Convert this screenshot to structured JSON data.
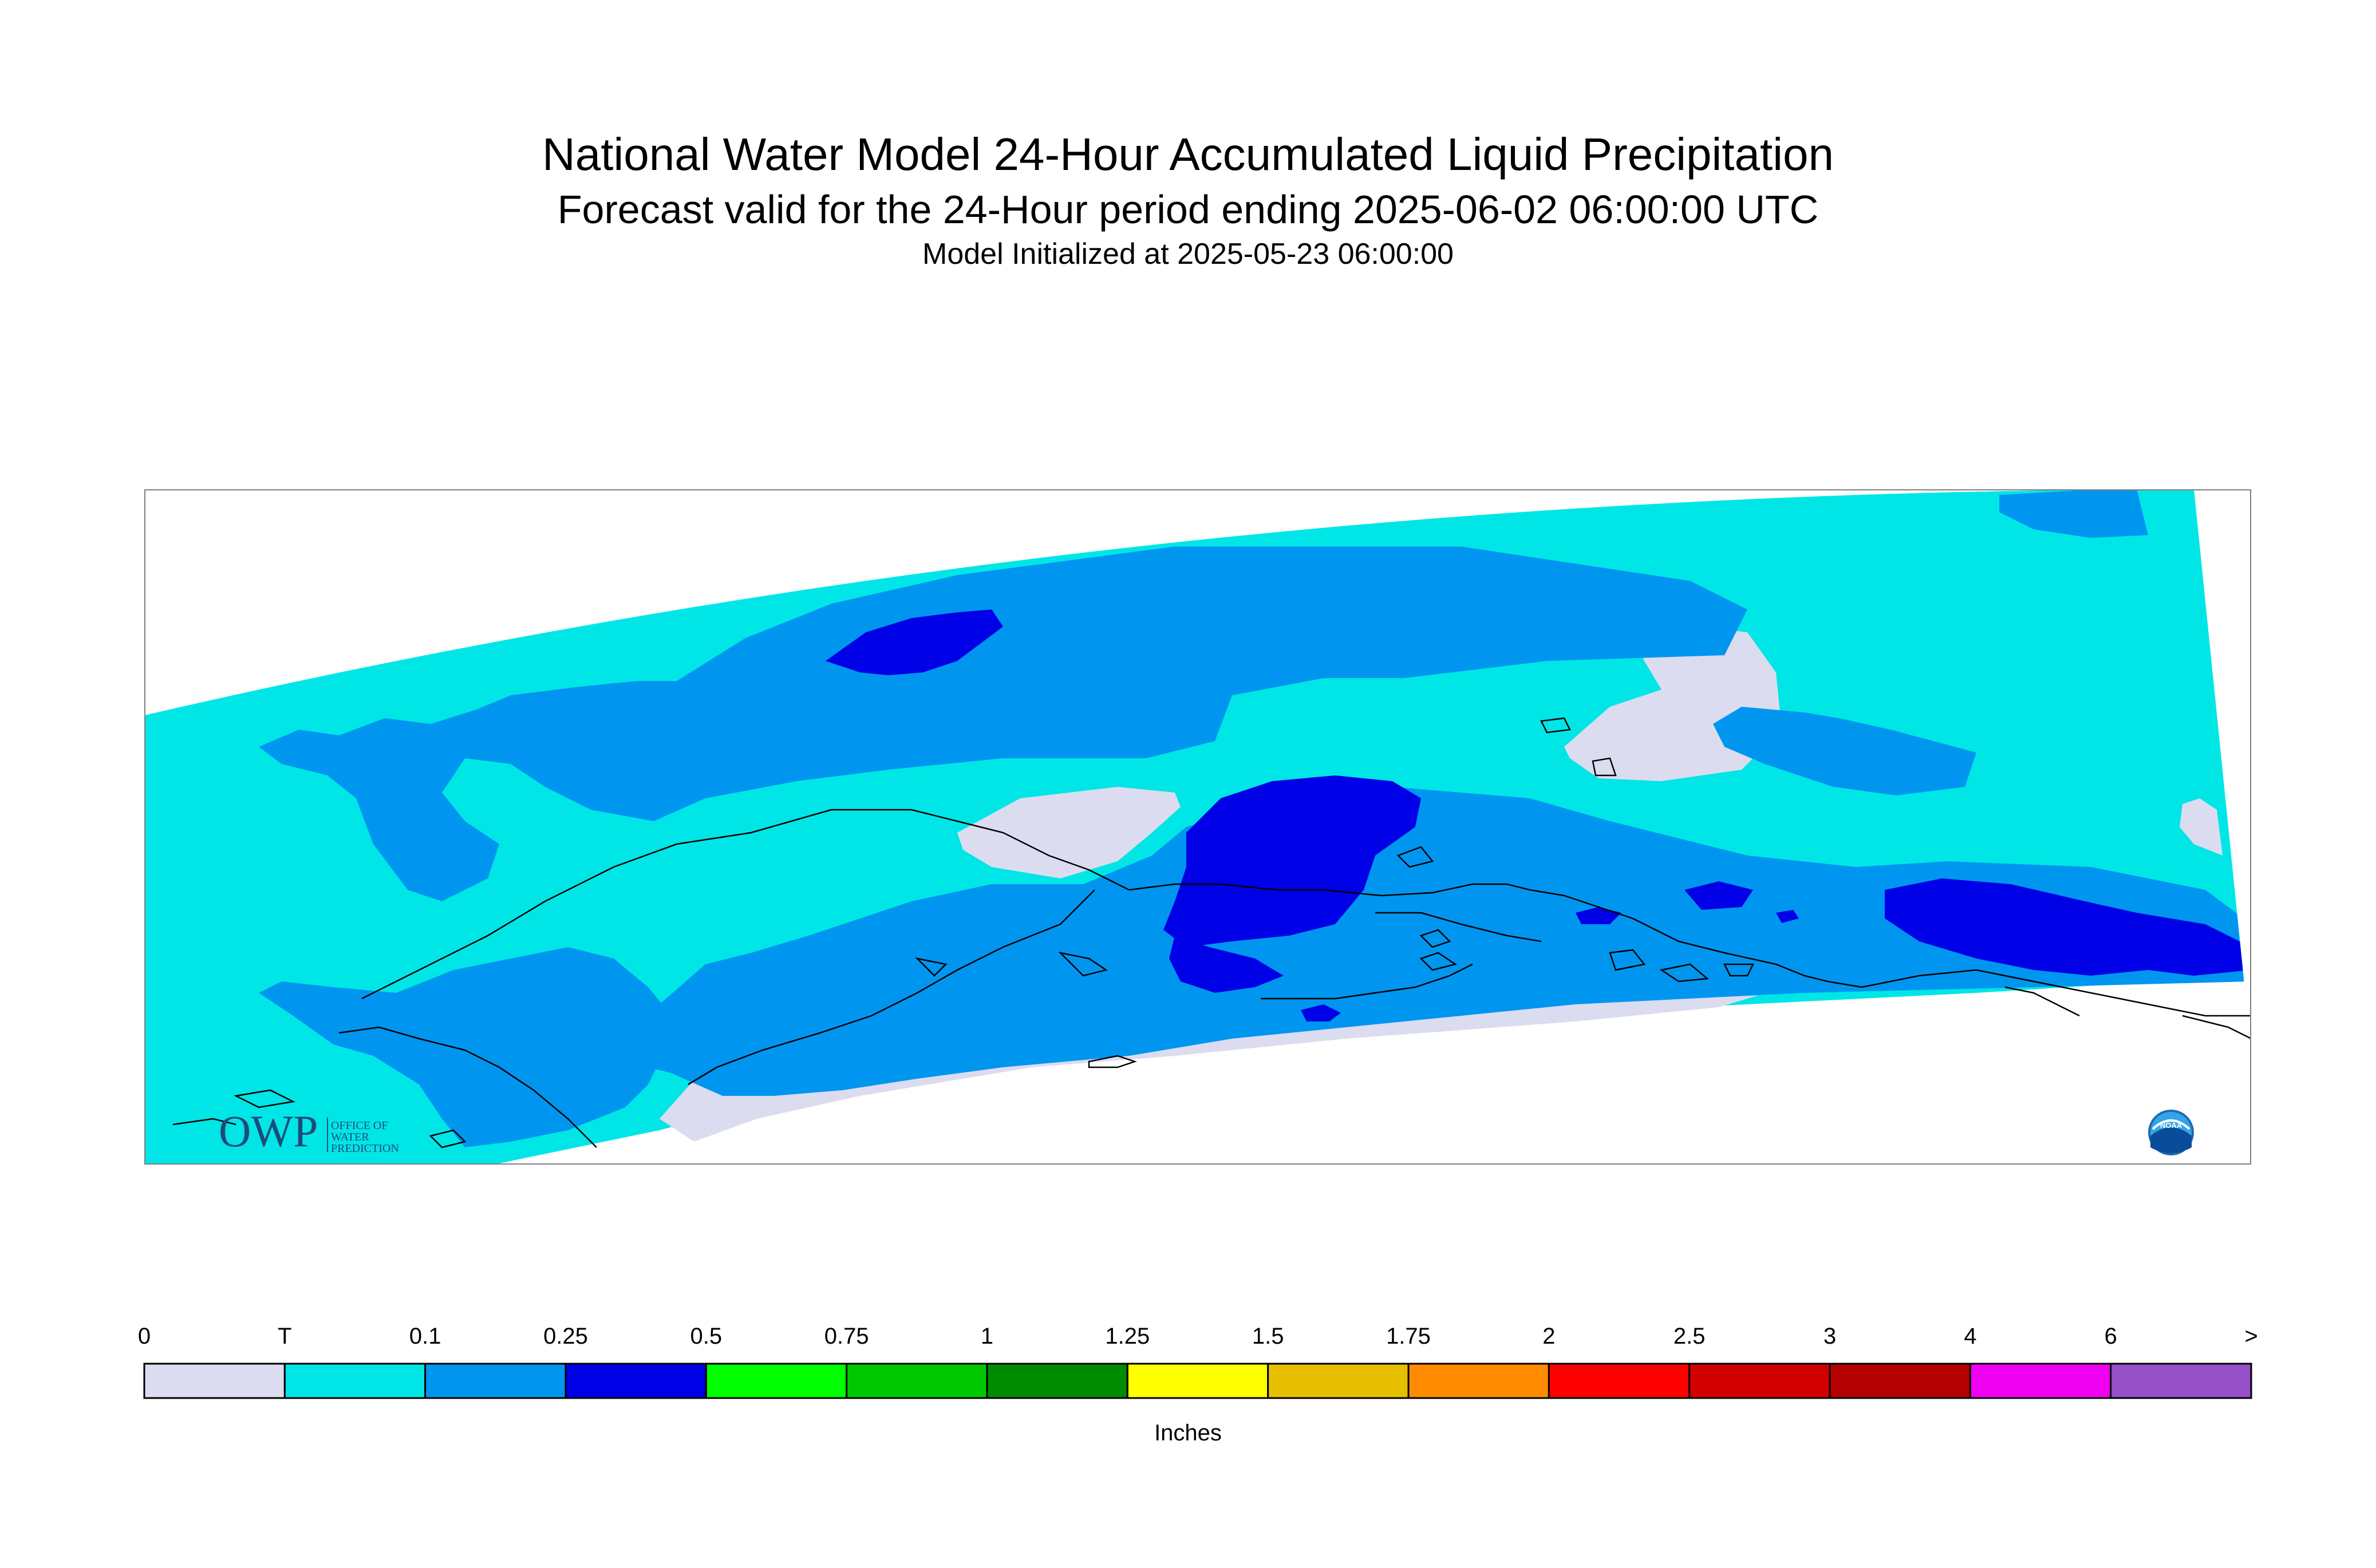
{
  "header": {
    "title": "National Water Model 24-Hour Accumulated Liquid Precipitation",
    "subtitle": "Forecast valid for the 24-Hour period ending 2025-06-02 06:00:00 UTC",
    "init": "Model Initialized at 2025-05-23 06:00:00"
  },
  "logos": {
    "owp_mark": "OWP",
    "owp_text": [
      "OFFICE OF",
      "WATER",
      "PREDICTION"
    ],
    "noaa_text": "NOAA"
  },
  "legend": {
    "unit": "Inches",
    "labels": [
      "0",
      "T",
      "0.1",
      "0.25",
      "0.5",
      "0.75",
      "1",
      "1.25",
      "1.5",
      "1.75",
      "2",
      "2.5",
      "3",
      "4",
      "6",
      ">"
    ],
    "colors": [
      "#dcdcf0",
      "#00e6e6",
      "#0096f0",
      "#0000e6",
      "#00ff00",
      "#00c800",
      "#008c00",
      "#ffff00",
      "#e6c000",
      "#ff8c00",
      "#ff0000",
      "#d20000",
      "#b40000",
      "#f000f0",
      "#9650c8"
    ]
  },
  "colors": {
    "zero": "#dcdcf0",
    "trace": "#00e6e6",
    "c01": "#0096f0",
    "c025": "#0000e6",
    "coast": "#000000"
  }
}
